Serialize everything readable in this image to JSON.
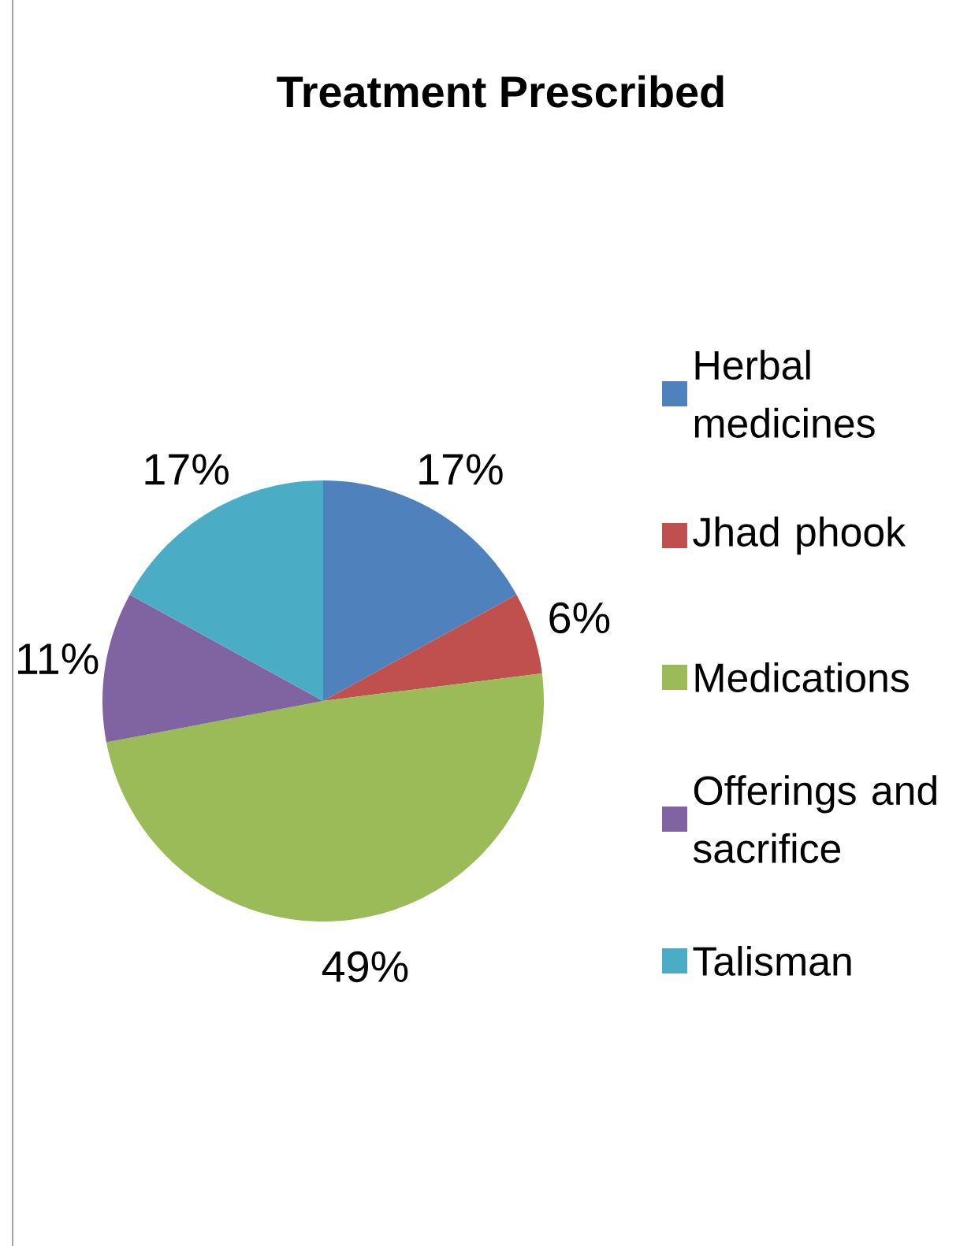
{
  "chart_data": {
    "type": "pie",
    "title": "Treatment Prescribed",
    "categories": [
      "Herbal medicines",
      "Jhad phook",
      "Medications",
      "Offerings and sacrifice",
      "Talisman"
    ],
    "values": [
      17,
      6,
      49,
      11,
      17
    ],
    "colors": [
      "#4f81bd",
      "#c0504d",
      "#9bbb59",
      "#8064a2",
      "#4bacc6"
    ],
    "value_labels": [
      "17%",
      "6%",
      "49%",
      "11%",
      "17%"
    ],
    "legend": "right"
  }
}
